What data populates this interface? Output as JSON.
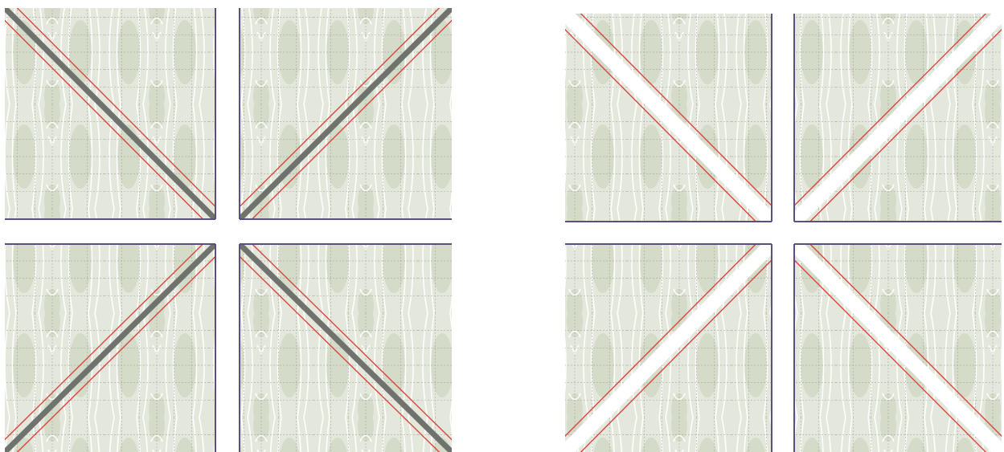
{
  "colors": {
    "background": "#ffffff",
    "fabric": "#e4e8dc",
    "fabric_motif": "#d4dbc8",
    "swirl": "#ffffff",
    "grid_line": "#9a9a92",
    "seam_line": "#d9453f",
    "fold_band": "#6f736d",
    "gap_band": "#ffffff",
    "edge_line": "#5b4f80"
  },
  "groups": [
    {
      "id": "with-fold-band",
      "band": "fold",
      "squares": [
        {
          "position": "top-left",
          "diagonal": "tl-br",
          "edges": [
            "right",
            "bottom"
          ]
        },
        {
          "position": "top-right",
          "diagonal": "bl-tr",
          "edges": [
            "left",
            "bottom"
          ]
        },
        {
          "position": "bottom-left",
          "diagonal": "bl-tr",
          "edges": [
            "top",
            "right"
          ]
        },
        {
          "position": "bottom-right",
          "diagonal": "tl-br",
          "edges": [
            "top",
            "left"
          ]
        }
      ]
    },
    {
      "id": "with-gap",
      "band": "gap",
      "squares": [
        {
          "position": "top-left",
          "diagonal": "tl-br",
          "edges": [
            "right",
            "bottom"
          ]
        },
        {
          "position": "top-right",
          "diagonal": "bl-tr",
          "edges": [
            "left",
            "bottom"
          ]
        },
        {
          "position": "bottom-left",
          "diagonal": "bl-tr",
          "edges": [
            "top",
            "right"
          ]
        },
        {
          "position": "bottom-right",
          "diagonal": "tl-br",
          "edges": [
            "top",
            "left"
          ]
        }
      ]
    }
  ]
}
